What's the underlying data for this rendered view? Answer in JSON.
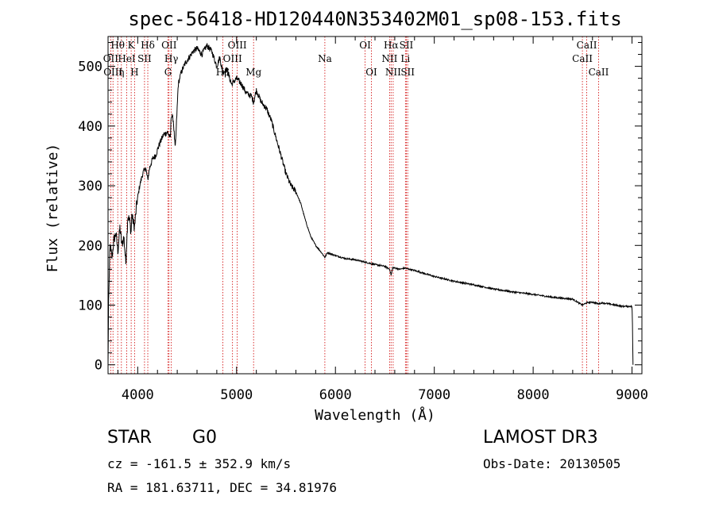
{
  "chart_data": {
    "type": "line",
    "title": "spec-56418-HD120440N353402M01_sp08-153.fits",
    "xlabel": "Wavelength (Å)",
    "ylabel": "Flux (relative)",
    "xlim": [
      3700,
      9100
    ],
    "ylim": [
      -15,
      550
    ],
    "x_ticks": [
      4000,
      5000,
      6000,
      7000,
      8000,
      9000
    ],
    "y_ticks": [
      0,
      100,
      200,
      300,
      400,
      500
    ],
    "series": [
      {
        "name": "flux",
        "x": [
          3700,
          3705,
          3720,
          3740,
          3760,
          3780,
          3800,
          3820,
          3840,
          3860,
          3880,
          3900,
          3920,
          3933,
          3940,
          3968,
          3990,
          4020,
          4050,
          4080,
          4102,
          4120,
          4150,
          4180,
          4220,
          4260,
          4300,
          4330,
          4340,
          4360,
          4380,
          4410,
          4440,
          4480,
          4520,
          4560,
          4600,
          4650,
          4700,
          4750,
          4800,
          4830,
          4861,
          4900,
          4950,
          5000,
          5050,
          5100,
          5150,
          5172,
          5200,
          5250,
          5300,
          5350,
          5400,
          5450,
          5500,
          5550,
          5600,
          5650,
          5700,
          5750,
          5800,
          5850,
          5893,
          5920,
          6000,
          6100,
          6200,
          6300,
          6400,
          6500,
          6550,
          6563,
          6580,
          6650,
          6700,
          6800,
          6900,
          7000,
          7200,
          7400,
          7600,
          7800,
          8000,
          8200,
          8400,
          8498,
          8542,
          8600,
          8662,
          8700,
          8800,
          8900,
          9000,
          9005,
          9010
        ],
        "values": [
          0,
          100,
          200,
          180,
          210,
          220,
          190,
          230,
          200,
          215,
          170,
          250,
          240,
          220,
          250,
          230,
          270,
          300,
          320,
          330,
          310,
          330,
          345,
          350,
          370,
          385,
          390,
          380,
          420,
          410,
          360,
          470,
          490,
          505,
          515,
          525,
          530,
          520,
          535,
          525,
          500,
          515,
          490,
          495,
          470,
          480,
          470,
          455,
          450,
          440,
          460,
          440,
          430,
          410,
          380,
          350,
          320,
          300,
          290,
          270,
          240,
          215,
          200,
          190,
          180,
          188,
          183,
          178,
          176,
          172,
          168,
          165,
          160,
          150,
          163,
          160,
          162,
          158,
          153,
          148,
          140,
          134,
          127,
          122,
          118,
          113,
          110,
          100,
          104,
          105,
          102,
          104,
          101,
          98,
          98,
          60,
          0
        ]
      }
    ],
    "spectral_lines": [
      {
        "label": "Hθ",
        "wave": 3798,
        "row": 1,
        "align": "middle"
      },
      {
        "label": "K",
        "wave": 3934,
        "row": 1,
        "align": "middle"
      },
      {
        "label": "Hδ",
        "wave": 4102,
        "row": 1,
        "align": "middle"
      },
      {
        "label": "OII",
        "wave": 4317,
        "row": 1,
        "align": "middle"
      },
      {
        "label": "OIII",
        "wave": 5007,
        "row": 1,
        "align": "middle"
      },
      {
        "label": "OI",
        "wave": 6300,
        "row": 1,
        "align": "middle"
      },
      {
        "label": "Hα",
        "wave": 6563,
        "row": 1,
        "align": "middle"
      },
      {
        "label": "SII",
        "wave": 6717,
        "row": 1,
        "align": "middle"
      },
      {
        "label": "CaII",
        "wave": 8542,
        "row": 1,
        "align": "middle"
      },
      {
        "label": "OII",
        "wave": 3727,
        "row": 2,
        "align": "middle"
      },
      {
        "label": "HeI",
        "wave": 3889,
        "row": 2,
        "align": "middle"
      },
      {
        "label": "SII",
        "wave": 4069,
        "row": 2,
        "align": "middle"
      },
      {
        "label": "Hγ",
        "wave": 4340,
        "row": 2,
        "align": "middle"
      },
      {
        "label": "OIII",
        "wave": 4959,
        "row": 2,
        "align": "middle"
      },
      {
        "label": "Na",
        "wave": 5893,
        "row": 2,
        "align": "middle"
      },
      {
        "label": "NII",
        "wave": 6548,
        "row": 2,
        "align": "middle"
      },
      {
        "label": "Li",
        "wave": 6708,
        "row": 2,
        "align": "middle"
      },
      {
        "label": "CaII",
        "wave": 8498,
        "row": 2,
        "align": "middle"
      },
      {
        "label": "OIII",
        "wave": 3750,
        "row": 3,
        "align": "middle"
      },
      {
        "label": "η",
        "wave": 3835,
        "row": 3,
        "align": "middle"
      },
      {
        "label": "H",
        "wave": 3968,
        "row": 3,
        "align": "middle"
      },
      {
        "label": "G",
        "wave": 4307,
        "row": 3,
        "align": "middle"
      },
      {
        "label": "Hβ",
        "wave": 4861,
        "row": 3,
        "align": "middle"
      },
      {
        "label": "Mg",
        "wave": 5172,
        "row": 3,
        "align": "middle"
      },
      {
        "label": "OI",
        "wave": 6364,
        "row": 3,
        "align": "middle"
      },
      {
        "label": "NII",
        "wave": 6584,
        "row": 3,
        "align": "middle"
      },
      {
        "label": "SII",
        "wave": 6731,
        "row": 3,
        "align": "middle"
      },
      {
        "label": "CaII",
        "wave": 8662,
        "row": 3,
        "align": "middle"
      }
    ]
  },
  "info": {
    "object_class": "STAR",
    "subclass": "G0",
    "survey": "LAMOST DR3",
    "cz": "cz = -161.5 ± 352.9 km/s",
    "obs_date": "Obs-Date: 20130505",
    "coords": "RA = 181.63711, DEC =  34.81976"
  },
  "colors": {
    "line": "#000000",
    "marker": "#d00000"
  }
}
